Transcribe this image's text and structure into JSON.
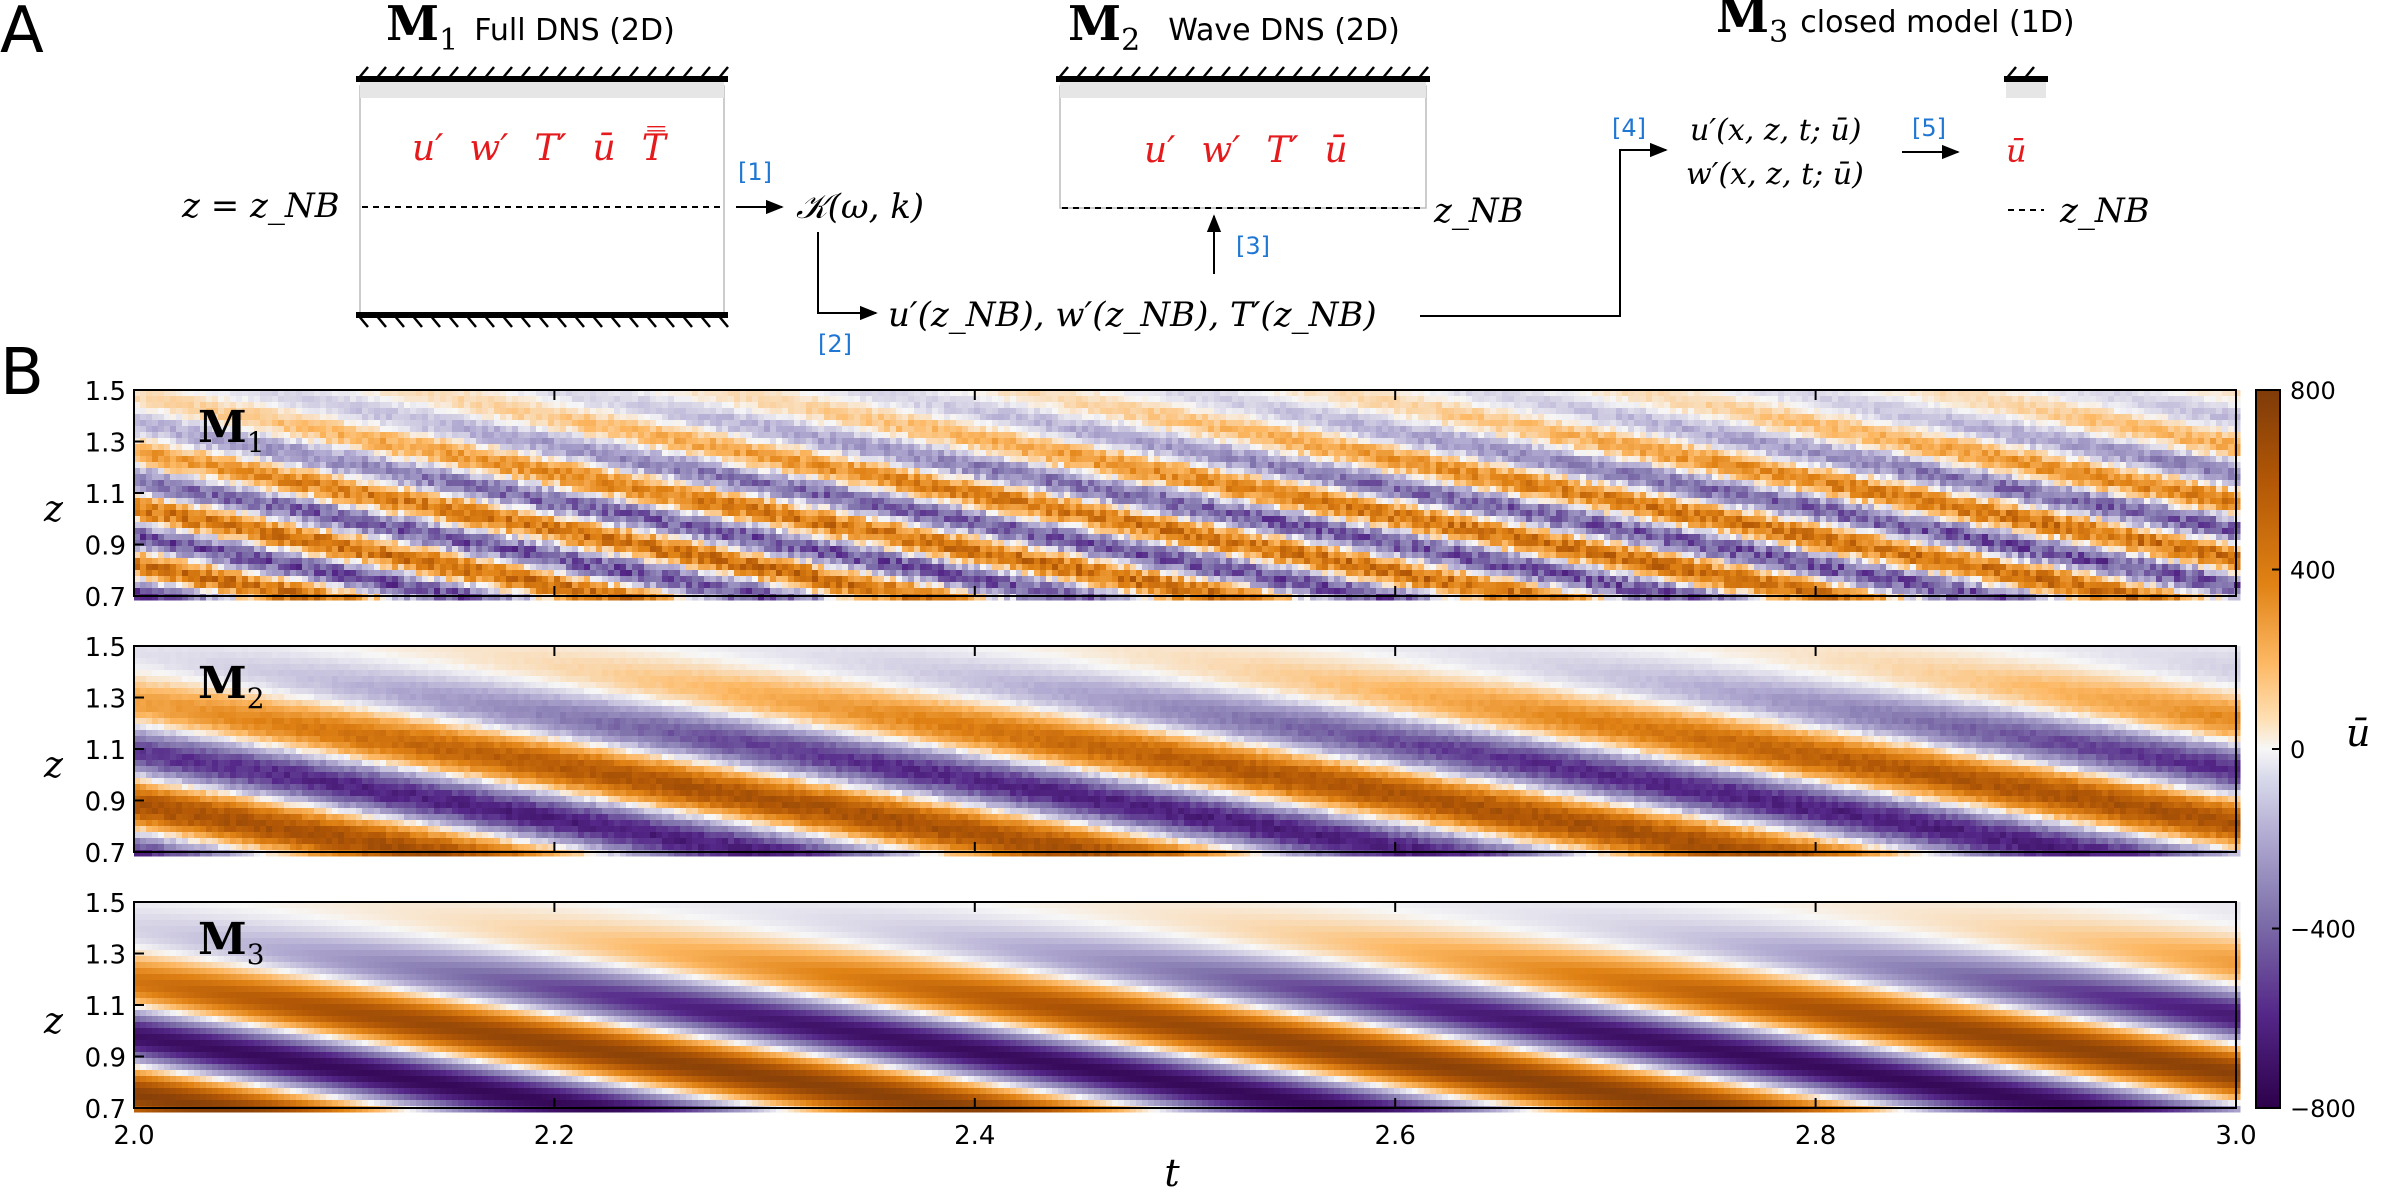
{
  "panel_a": {
    "label": "A",
    "models": [
      {
        "symbol": "M",
        "sub": "1",
        "title": "Full DNS (2D)",
        "fields": [
          "u′",
          "w′",
          "T′",
          "ū",
          "T̿"
        ],
        "level": "z = z_NB"
      },
      {
        "symbol": "M",
        "sub": "2",
        "title": "Wave DNS (2D)",
        "fields": [
          "u′",
          "w′",
          "T′",
          "ū"
        ],
        "level": "z_NB"
      },
      {
        "symbol": "M",
        "sub": "3",
        "title": "closed model (1D)",
        "fields": [
          "ū"
        ],
        "level": "z_NB"
      }
    ],
    "steps": [
      "[1]",
      "[2]",
      "[3]",
      "[4]",
      "[5]"
    ],
    "kernel": "𝒦(ω, k)",
    "boundary_data": "u′(z_NB), w′(z_NB), T′(z_NB)",
    "closure_u": "u′(x, z, t; ū)",
    "closure_w": "w′(x, z, t; ū)"
  },
  "panel_b": {
    "label": "B",
    "colorbar": {
      "label": "ū",
      "ticks": [
        "800",
        "400",
        "0",
        "−400",
        "−800"
      ],
      "range": [
        -800,
        800
      ]
    }
  },
  "chart_data": {
    "type": "heatmap",
    "xlabel": "t",
    "ylabel": "z",
    "xlim": [
      2.0,
      3.0
    ],
    "ylim": [
      0.7,
      1.5
    ],
    "x_ticks": [
      "2.0",
      "2.2",
      "2.4",
      "2.6",
      "2.8",
      "3.0"
    ],
    "y_ticks": [
      "1.5",
      "1.3",
      "1.1",
      "0.9",
      "0.7"
    ],
    "colorscale": {
      "min": -800,
      "max": 800,
      "negative": "#2d004b",
      "zero": "#f7f7f7",
      "positive": "#b35806"
    },
    "panels": [
      {
        "name": "M",
        "sub": "1",
        "description": "Full DNS: noisy descending oscillation, amplitude about 500",
        "period": 0.145
      },
      {
        "name": "M",
        "sub": "2",
        "description": "Wave DNS: regular descending oscillation, amplitude about 650",
        "period": 0.315
      },
      {
        "name": "M",
        "sub": "3",
        "description": "Closed 1D model: smooth descending oscillation, amplitude about 750",
        "period": 0.355
      }
    ]
  }
}
